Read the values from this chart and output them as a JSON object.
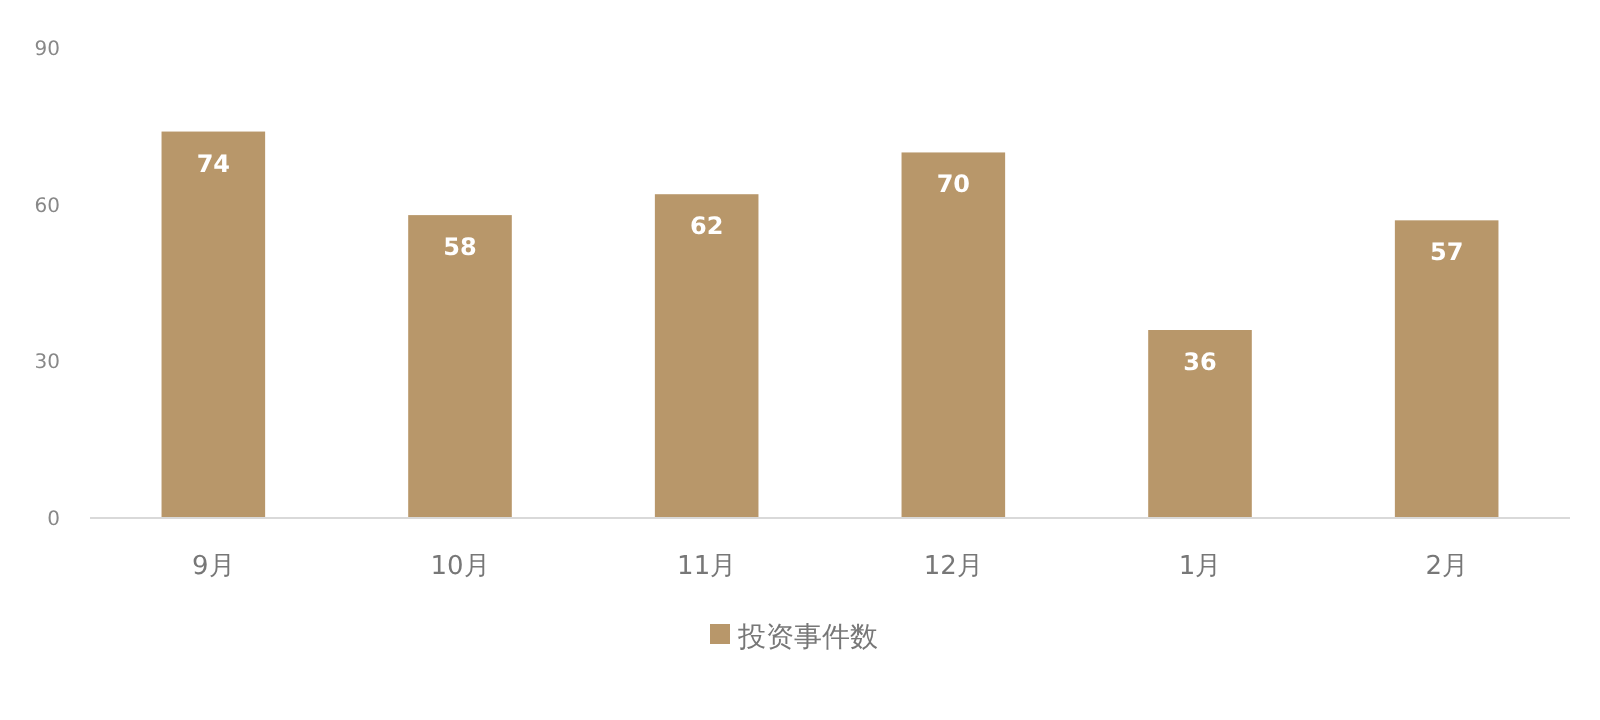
{
  "chart_data": {
    "type": "bar",
    "categories": [
      "9月",
      "10月",
      "11月",
      "12月",
      "1月",
      "2月"
    ],
    "series": [
      {
        "name": "投资事件数",
        "color": "#b8976a",
        "values": [
          74,
          58,
          62,
          70,
          36,
          57
        ]
      }
    ],
    "ylim": [
      0,
      90
    ],
    "yticks": [
      0,
      30,
      60,
      90
    ],
    "grid": false,
    "legend": "bottom",
    "data_labels": true
  }
}
